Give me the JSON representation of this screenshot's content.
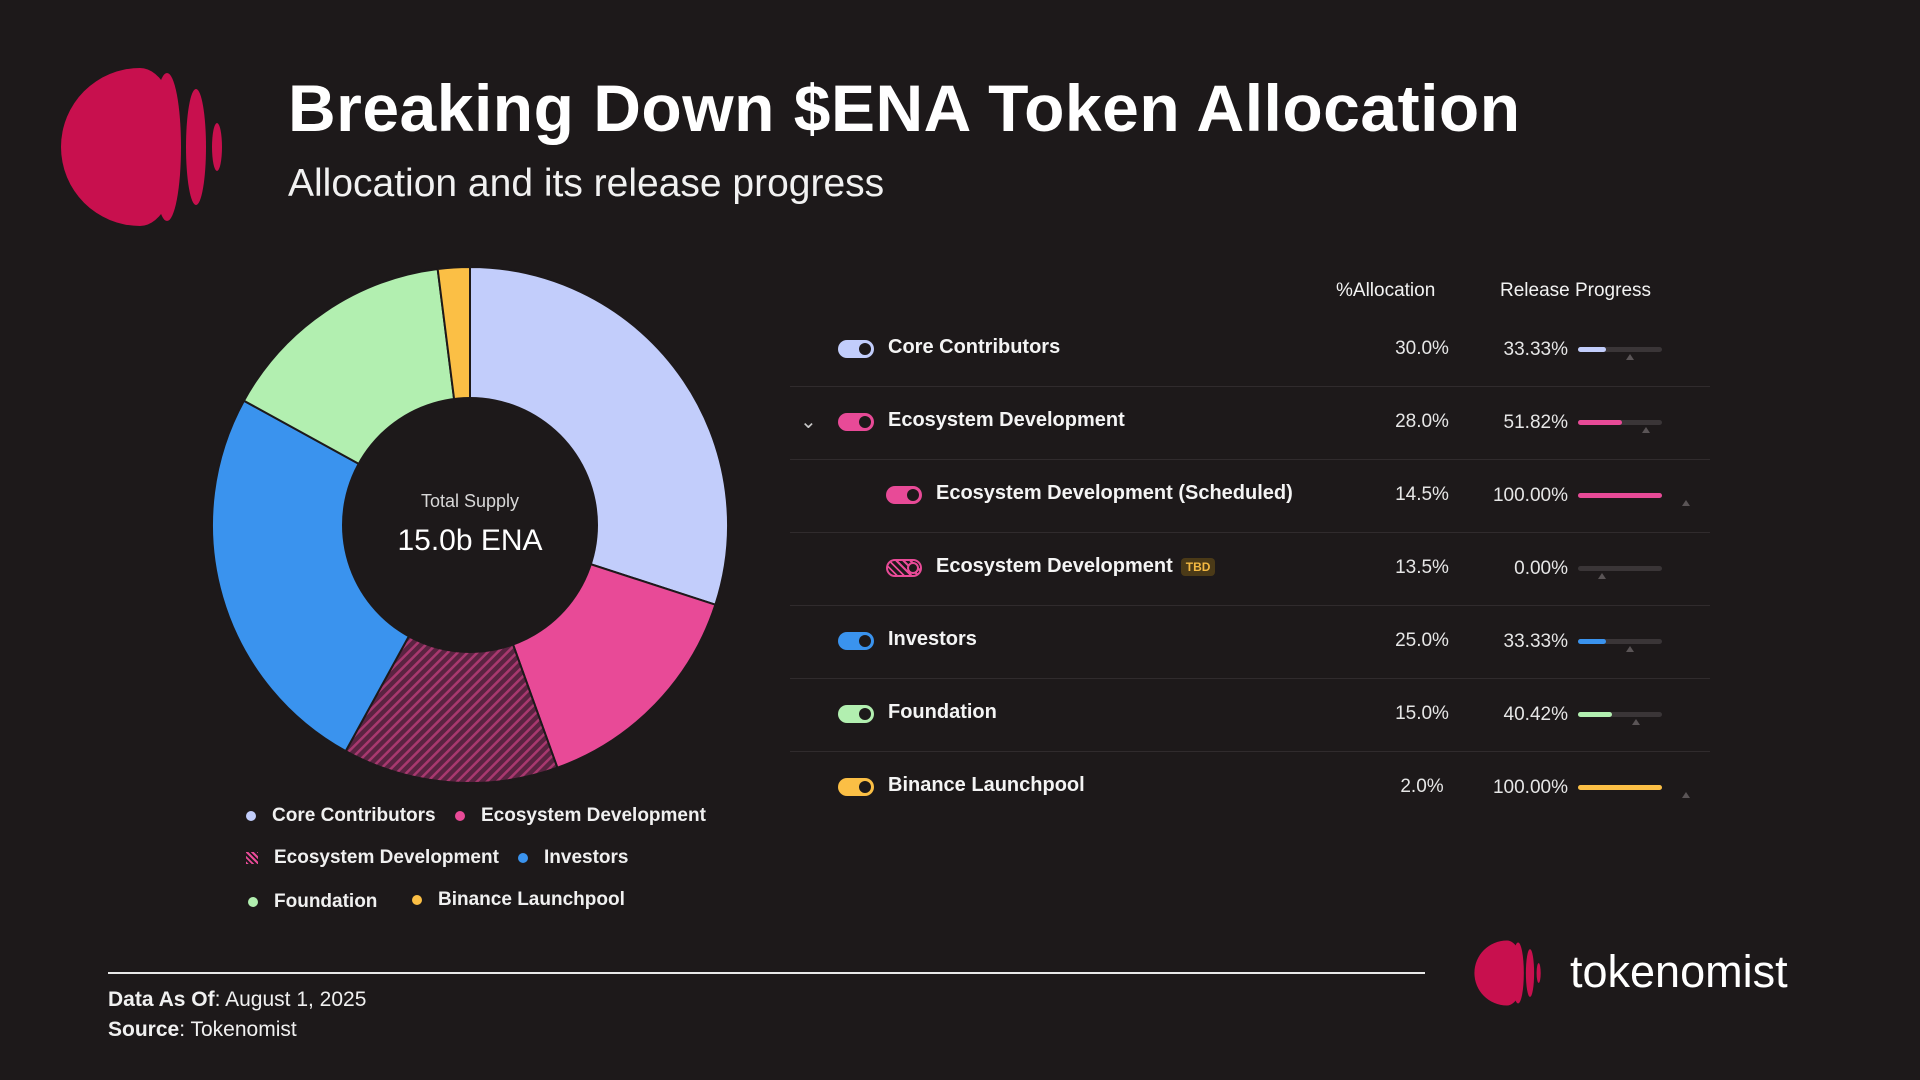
{
  "header": {
    "title": "Breaking Down $ENA Token Allocation",
    "subtitle": "Allocation and its release progress"
  },
  "center": {
    "label": "Total Supply",
    "value": "15.0b ENA"
  },
  "legend": [
    "Core Contributors",
    "Ecosystem Development",
    "Ecosystem Development",
    "Investors",
    "Foundation",
    "Binance Launchpool"
  ],
  "table": {
    "headers": {
      "allocation": "%Allocation",
      "progress": "Release Progress"
    },
    "tbd_badge": "TBD",
    "rows": [
      {
        "name": "Core Contributors",
        "allocation": "30.0%",
        "progress": "33.33%"
      },
      {
        "name": "Ecosystem Development",
        "allocation": "28.0%",
        "progress": "51.82%"
      },
      {
        "name": "Ecosystem Development (Scheduled)",
        "allocation": "14.5%",
        "progress": "100.00%"
      },
      {
        "name": "Ecosystem Development",
        "allocation": "13.5%",
        "progress": "0.00%"
      },
      {
        "name": "Investors",
        "allocation": "25.0%",
        "progress": "33.33%"
      },
      {
        "name": "Foundation",
        "allocation": "15.0%",
        "progress": "40.42%"
      },
      {
        "name": "Binance Launchpool",
        "allocation": "2.0%",
        "progress": "100.00%"
      }
    ]
  },
  "footer": {
    "data_label": "Data As Of",
    "data_value": ": August 1, 2025",
    "source_label": "Source",
    "source_value": ": Tokenomist",
    "brand": "tokenomist"
  },
  "colors": {
    "core": "#c2cdfb",
    "eco": "#e84a97",
    "eco_tbd": "#7a2e55",
    "investors": "#3a93ee",
    "foundation": "#b2efb0",
    "binance": "#fbbf45",
    "brand": "#c8104e"
  },
  "chart_data": {
    "type": "pie",
    "categories": [
      "Core Contributors",
      "Ecosystem Development (Scheduled)",
      "Ecosystem Development (TBD)",
      "Investors",
      "Foundation",
      "Binance Launchpool"
    ],
    "values": [
      30.0,
      14.5,
      13.5,
      25.0,
      15.0,
      2.0
    ],
    "release_progress": [
      33.33,
      100.0,
      0.0,
      33.33,
      40.42,
      100.0
    ],
    "style": "donut",
    "legend_position": "bottom"
  }
}
